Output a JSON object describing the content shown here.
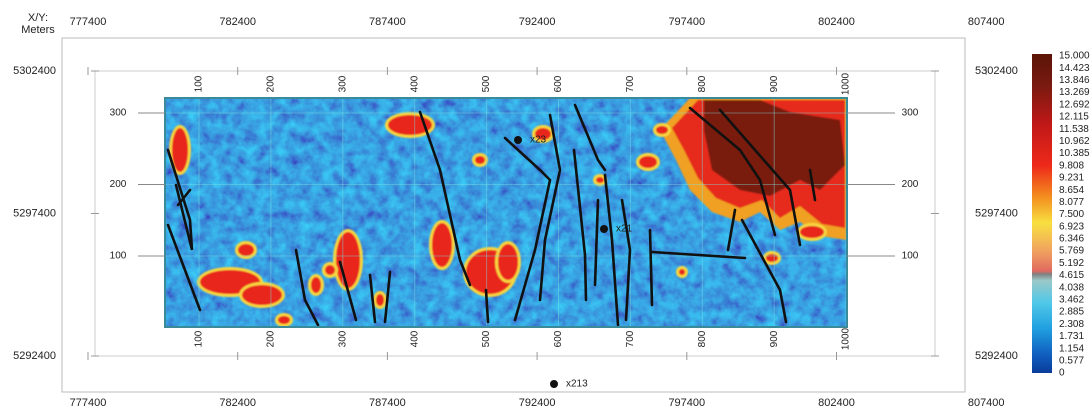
{
  "axis_corner": {
    "line1": "X/Y:",
    "line2": "Meters"
  },
  "x_axis": {
    "ticks": [
      "777400",
      "782400",
      "787400",
      "792400",
      "797400",
      "802400",
      "807400"
    ]
  },
  "y_axis": {
    "ticks": [
      "5302400",
      "5297400",
      "5292400"
    ]
  },
  "inlines": [
    "100",
    "200",
    "300",
    "400",
    "500",
    "600",
    "700",
    "800",
    "900",
    "1000"
  ],
  "crosslines": [
    "300",
    "200",
    "100"
  ],
  "wells": [
    {
      "label": "x23"
    },
    {
      "label": "x21"
    },
    {
      "label": "x213"
    }
  ],
  "colorbar": {
    "labels": [
      "15.000",
      "14.423",
      "13.846",
      "13.269",
      "12.692",
      "12.115",
      "11.538",
      "10.962",
      "10.385",
      "9.808",
      "9.231",
      "8.654",
      "8.077",
      "7.500",
      "6.923",
      "6.346",
      "5.769",
      "5.192",
      "4.615",
      "4.038",
      "3.462",
      "2.885",
      "2.308",
      "1.731",
      "1.154",
      "0.577",
      "0"
    ]
  }
}
